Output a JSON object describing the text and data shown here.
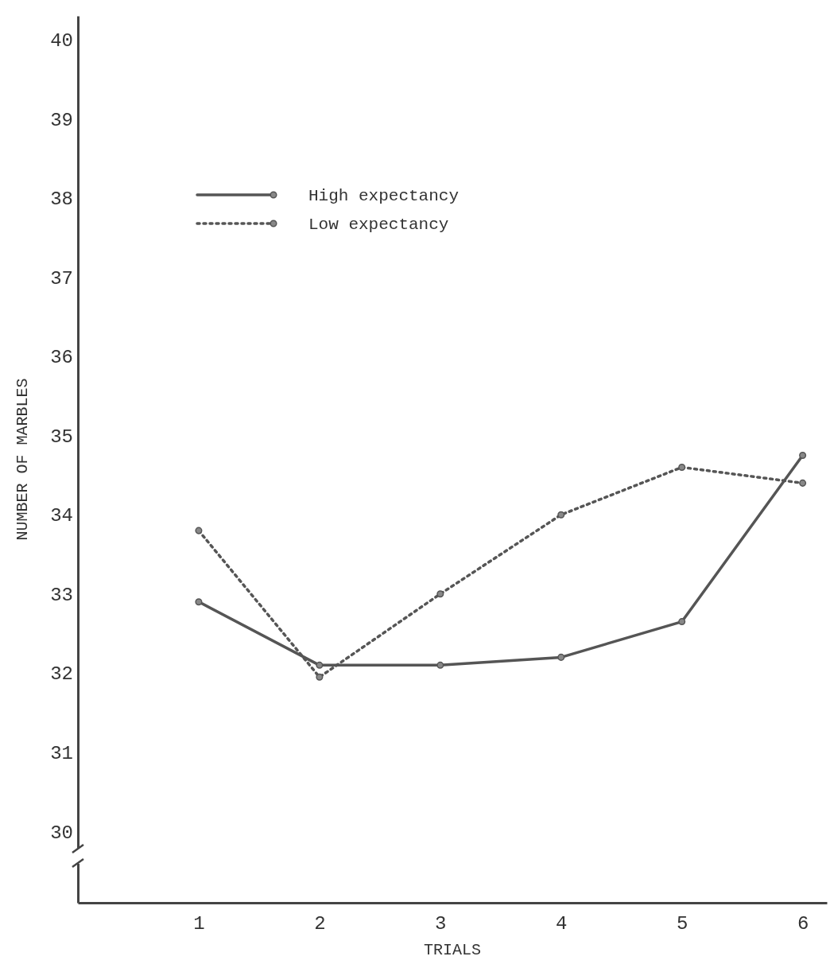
{
  "chart_data": {
    "type": "line",
    "xlabel": "TRIALS",
    "ylabel": "NUMBER OF MARBLES",
    "x": [
      1,
      2,
      3,
      4,
      5,
      6
    ],
    "xlim": [
      0,
      6.2
    ],
    "xticks": [
      1,
      2,
      3,
      4,
      5,
      6
    ],
    "ylim": [
      29.1,
      40.3
    ],
    "yticks": [
      30,
      31,
      32,
      33,
      34,
      35,
      36,
      37,
      38,
      39,
      40
    ],
    "grid": false,
    "legend": "top left",
    "marker": "circle",
    "series": [
      {
        "name": "High expectancy",
        "color": "#555555",
        "line_style": "solid",
        "values": [
          32.9,
          32.1,
          32.1,
          32.2,
          32.65,
          34.75
        ]
      },
      {
        "name": "Low expectancy",
        "color": "#555555",
        "line_style": "dotted",
        "values": [
          33.8,
          31.95,
          33.0,
          34.0,
          34.6,
          34.4
        ]
      }
    ]
  }
}
